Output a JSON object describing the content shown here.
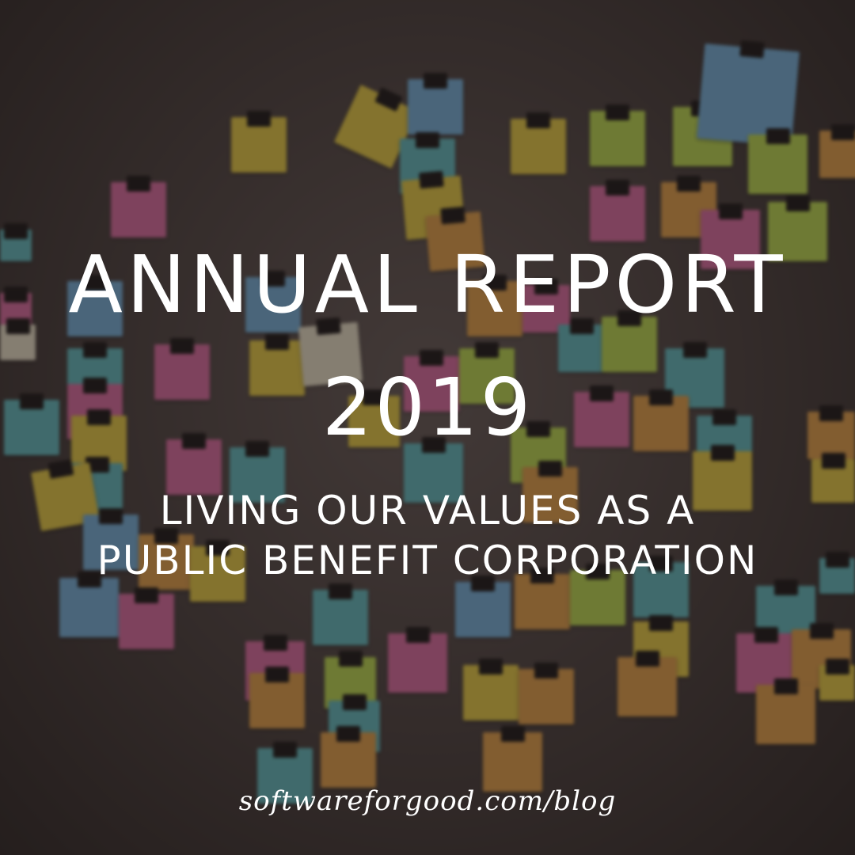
{
  "headline": {
    "line1": "ANNUAL REPORT",
    "line2": "2019"
  },
  "subtitle": {
    "line1": "LIVING OUR VALUES AS A",
    "line2": "PUBLIC BENEFIT CORPORATION"
  },
  "footer": {
    "url": "softwareforgood.com/blog"
  },
  "colors": {
    "text": "#ffffff",
    "overlay": "#1c1616",
    "background": "#4a403d",
    "note_palette": [
      "#f2d12e",
      "#f06aa8",
      "#6fb7e8",
      "#f2a33a",
      "#bfe23c",
      "#58c2c6",
      "#f0e6c8"
    ]
  }
}
